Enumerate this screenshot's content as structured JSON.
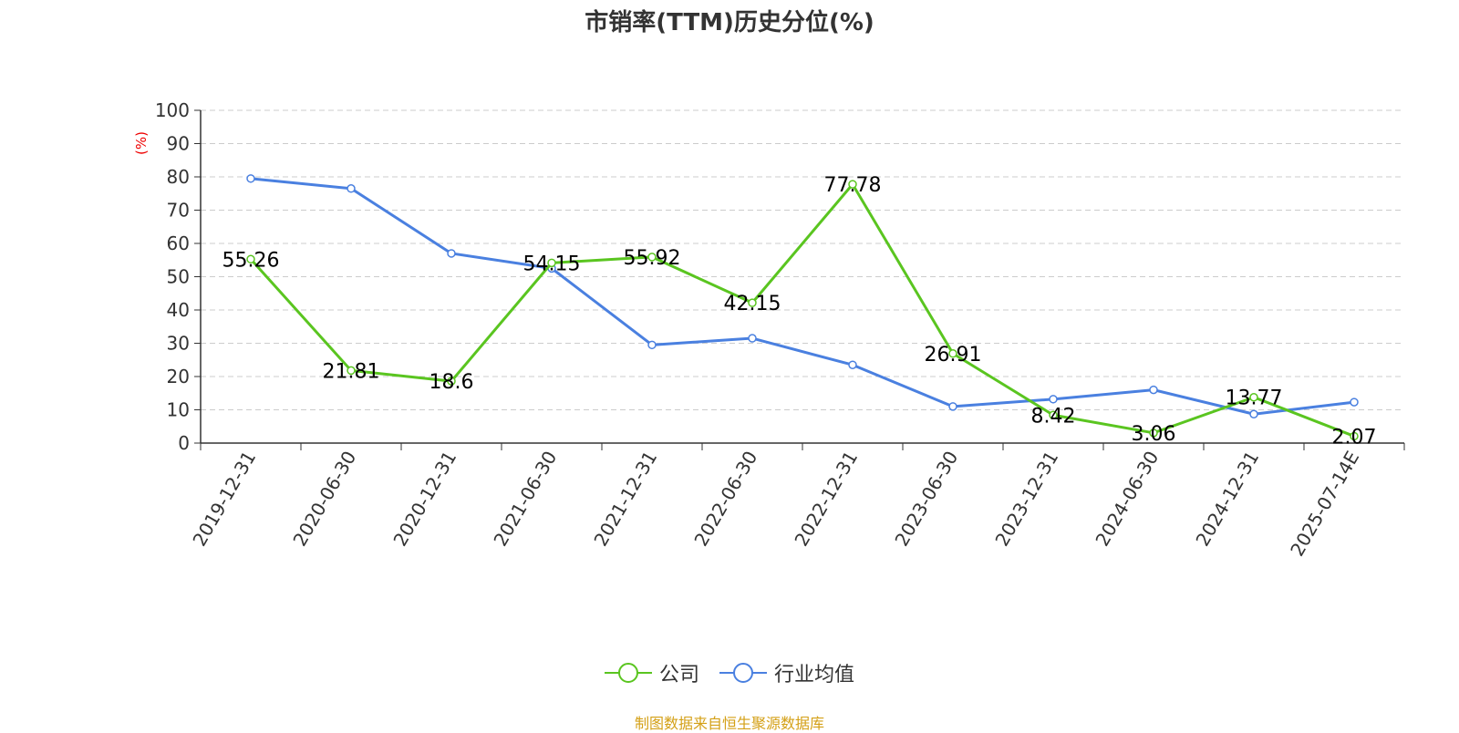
{
  "colors": {
    "company": "#5ac520",
    "industry": "#4a80e0",
    "ylabel": "#ee0000",
    "source": "#d4a017"
  },
  "chart_data": {
    "type": "line",
    "title": "市销率(TTM)历史分位(%)",
    "ylabel": "(%)",
    "ylim": [
      0,
      100
    ],
    "yticks": [
      0,
      10,
      20,
      30,
      40,
      50,
      60,
      70,
      80,
      90,
      100
    ],
    "grid": true,
    "legend_position": "bottom",
    "categories": [
      "2019-12-31",
      "2020-06-30",
      "2020-12-31",
      "2021-06-30",
      "2021-12-31",
      "2022-06-30",
      "2022-12-31",
      "2023-06-30",
      "2023-12-31",
      "2024-06-30",
      "2024-12-31",
      "2025-07-14E"
    ],
    "series": [
      {
        "name": "公司",
        "values": [
          55.26,
          21.81,
          18.6,
          54.15,
          55.92,
          42.15,
          77.78,
          26.91,
          8.42,
          3.06,
          13.77,
          2.07
        ],
        "labels": [
          "55.26",
          "21.81",
          "18.6",
          "54.15",
          "55.92",
          "42.15",
          "77.78",
          "26.91",
          "8.42",
          "3.06",
          "13.77",
          "2.07"
        ]
      },
      {
        "name": "行业均值",
        "values": [
          79.5,
          76.5,
          57.0,
          52.5,
          29.5,
          31.5,
          23.5,
          11.0,
          13.2,
          16.0,
          8.7,
          12.3
        ]
      }
    ]
  },
  "source": "制图数据来自恒生聚源数据库"
}
